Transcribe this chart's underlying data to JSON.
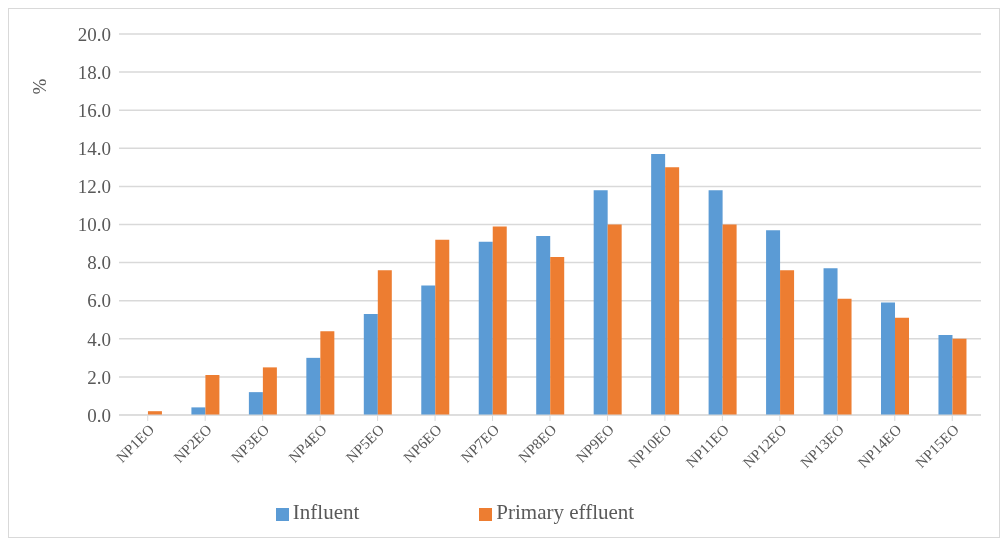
{
  "chart_data": {
    "type": "bar",
    "ylabel": "%",
    "categories": [
      "NP1EO",
      "NP2EO",
      "NP3EO",
      "NP4EO",
      "NP5EO",
      "NP6EO",
      "NP7EO",
      "NP8EO",
      "NP9EO",
      "NP10EO",
      "NP11EO",
      "NP12EO",
      "NP13EO",
      "NP14EO",
      "NP15EO"
    ],
    "series": [
      {
        "name": "Influent",
        "color": "#5b9bd5",
        "values": [
          0,
          0.4,
          1.2,
          3.0,
          5.3,
          6.8,
          9.1,
          9.4,
          11.8,
          13.7,
          11.8,
          9.7,
          7.7,
          5.9,
          4.2
        ]
      },
      {
        "name": "Primary effluent",
        "color": "#ed7d31",
        "values": [
          0.2,
          2.1,
          2.5,
          4.4,
          7.6,
          9.2,
          9.9,
          8.3,
          10.0,
          13.0,
          10.0,
          7.6,
          6.1,
          5.1,
          4.0
        ]
      }
    ],
    "ylim": [
      0,
      20
    ],
    "yticks": [
      {
        "value": 0,
        "label": "0.0"
      },
      {
        "value": 2,
        "label": "2.0"
      },
      {
        "value": 4,
        "label": "4.0"
      },
      {
        "value": 6,
        "label": "6.0"
      },
      {
        "value": 8,
        "label": "8.0"
      },
      {
        "value": 10,
        "label": "10.0"
      },
      {
        "value": 12,
        "label": "12.0"
      },
      {
        "value": 14,
        "label": "14.0"
      },
      {
        "value": 16,
        "label": "16.0"
      },
      {
        "value": 18,
        "label": "18.0"
      },
      {
        "value": 20,
        "label": "20.0"
      }
    ],
    "grid": "y",
    "legend": "bottom"
  }
}
